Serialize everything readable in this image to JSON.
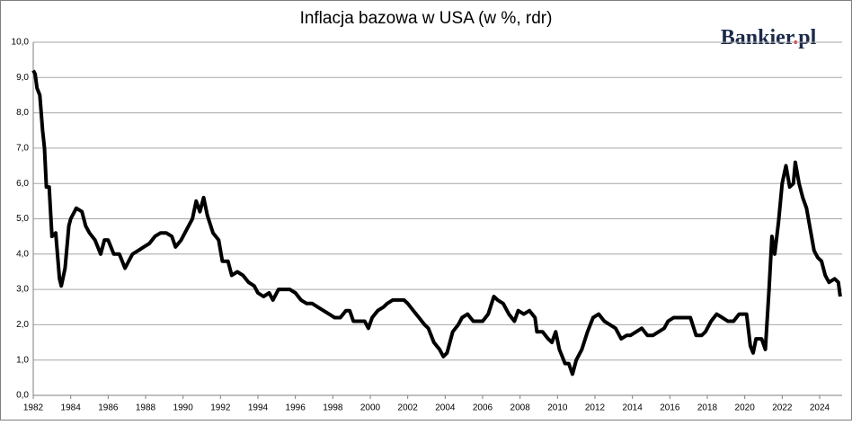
{
  "chart_data": {
    "type": "line",
    "title": "Inflacja bazowa w USA (w %, rdr)",
    "logo": [
      "Bankier",
      ".",
      "pl"
    ],
    "logo_colors": [
      "#1b2a4a",
      "#d9232e",
      "#1b2a4a"
    ],
    "xlim": [
      1982,
      2025.2
    ],
    "xticks": [
      1982,
      1984,
      1986,
      1988,
      1990,
      1992,
      1994,
      1996,
      1998,
      2000,
      2002,
      2004,
      2006,
      2008,
      2010,
      2012,
      2014,
      2016,
      2018,
      2020,
      2022,
      2024
    ],
    "ylim": [
      0,
      10
    ],
    "yticks": [
      {
        "value": 0,
        "label": "0,0"
      },
      {
        "value": 1,
        "label": "1,0"
      },
      {
        "value": 2,
        "label": "2,0"
      },
      {
        "value": 3,
        "label": "3,0"
      },
      {
        "value": 4,
        "label": "4,0"
      },
      {
        "value": 5,
        "label": "5,0"
      },
      {
        "value": 6,
        "label": "6,0"
      },
      {
        "value": 7,
        "label": "7,0"
      },
      {
        "value": 8,
        "label": "8,0"
      },
      {
        "value": 9,
        "label": "9,0"
      },
      {
        "value": 10,
        "label": "10,0"
      }
    ],
    "grid": true,
    "series": [
      {
        "name": "Inflacja bazowa",
        "color": "#000000",
        "x": [
          1982.0,
          1982.1,
          1982.2,
          1982.35,
          1982.5,
          1982.6,
          1982.7,
          1982.85,
          1983.0,
          1983.2,
          1983.4,
          1983.5,
          1983.7,
          1983.9,
          1984.0,
          1984.3,
          1984.6,
          1984.8,
          1985.0,
          1985.3,
          1985.6,
          1985.8,
          1986.0,
          1986.3,
          1986.6,
          1986.9,
          1987.1,
          1987.3,
          1987.6,
          1987.9,
          1988.2,
          1988.5,
          1988.8,
          1989.1,
          1989.4,
          1989.6,
          1989.9,
          1990.2,
          1990.5,
          1990.7,
          1990.9,
          1991.1,
          1991.3,
          1991.6,
          1991.9,
          1992.1,
          1992.4,
          1992.6,
          1992.9,
          1993.2,
          1993.5,
          1993.8,
          1994.0,
          1994.3,
          1994.6,
          1994.8,
          1995.1,
          1995.4,
          1995.7,
          1996.0,
          1996.3,
          1996.6,
          1996.9,
          1997.2,
          1997.5,
          1997.8,
          1998.1,
          1998.4,
          1998.7,
          1998.9,
          1999.1,
          1999.4,
          1999.7,
          1999.9,
          2000.1,
          2000.4,
          2000.7,
          2000.9,
          2001.2,
          2001.5,
          2001.8,
          2002.0,
          2002.3,
          2002.6,
          2002.9,
          2003.1,
          2003.4,
          2003.7,
          2003.9,
          2004.1,
          2004.4,
          2004.7,
          2004.9,
          2005.2,
          2005.5,
          2005.8,
          2006.0,
          2006.3,
          2006.6,
          2006.8,
          2007.1,
          2007.4,
          2007.7,
          2007.9,
          2008.2,
          2008.5,
          2008.8,
          2008.9,
          2009.2,
          2009.5,
          2009.7,
          2009.9,
          2010.1,
          2010.4,
          2010.6,
          2010.8,
          2011.0,
          2011.3,
          2011.6,
          2011.9,
          2012.2,
          2012.5,
          2012.8,
          2013.1,
          2013.4,
          2013.7,
          2013.9,
          2014.2,
          2014.5,
          2014.8,
          2015.1,
          2015.4,
          2015.7,
          2015.9,
          2016.2,
          2016.5,
          2016.8,
          2017.1,
          2017.4,
          2017.7,
          2017.9,
          2018.2,
          2018.5,
          2018.8,
          2019.1,
          2019.4,
          2019.7,
          2019.9,
          2020.1,
          2020.3,
          2020.45,
          2020.6,
          2020.9,
          2021.1,
          2021.3,
          2021.45,
          2021.6,
          2021.8,
          2022.0,
          2022.2,
          2022.4,
          2022.6,
          2022.7,
          2022.9,
          2023.1,
          2023.3,
          2023.5,
          2023.7,
          2023.9,
          2024.1,
          2024.3,
          2024.5,
          2024.8,
          2025.0,
          2025.1
        ],
        "values": [
          9.2,
          9.1,
          8.7,
          8.5,
          7.5,
          7.0,
          5.9,
          5.9,
          4.5,
          4.6,
          3.3,
          3.1,
          3.6,
          4.8,
          5.0,
          5.3,
          5.2,
          4.8,
          4.6,
          4.4,
          4.0,
          4.4,
          4.4,
          4.0,
          4.0,
          3.6,
          3.8,
          4.0,
          4.1,
          4.2,
          4.3,
          4.5,
          4.6,
          4.6,
          4.5,
          4.2,
          4.4,
          4.7,
          5.0,
          5.5,
          5.2,
          5.6,
          5.1,
          4.6,
          4.4,
          3.8,
          3.8,
          3.4,
          3.5,
          3.4,
          3.2,
          3.1,
          2.9,
          2.8,
          2.9,
          2.7,
          3.0,
          3.0,
          3.0,
          2.9,
          2.7,
          2.6,
          2.6,
          2.5,
          2.4,
          2.3,
          2.2,
          2.2,
          2.4,
          2.4,
          2.1,
          2.1,
          2.1,
          1.9,
          2.2,
          2.4,
          2.5,
          2.6,
          2.7,
          2.7,
          2.7,
          2.6,
          2.4,
          2.2,
          2.0,
          1.9,
          1.5,
          1.3,
          1.1,
          1.2,
          1.8,
          2.0,
          2.2,
          2.3,
          2.1,
          2.1,
          2.1,
          2.3,
          2.8,
          2.7,
          2.6,
          2.3,
          2.1,
          2.4,
          2.3,
          2.4,
          2.2,
          1.8,
          1.8,
          1.6,
          1.5,
          1.8,
          1.3,
          0.9,
          0.9,
          0.6,
          1.0,
          1.3,
          1.8,
          2.2,
          2.3,
          2.1,
          2.0,
          1.9,
          1.6,
          1.7,
          1.7,
          1.8,
          1.9,
          1.7,
          1.7,
          1.8,
          1.9,
          2.1,
          2.2,
          2.2,
          2.2,
          2.2,
          1.7,
          1.7,
          1.8,
          2.1,
          2.3,
          2.2,
          2.1,
          2.1,
          2.3,
          2.3,
          2.3,
          1.4,
          1.2,
          1.6,
          1.6,
          1.3,
          3.0,
          4.5,
          4.0,
          4.9,
          6.0,
          6.5,
          5.9,
          6.0,
          6.6,
          6.0,
          5.6,
          5.3,
          4.7,
          4.1,
          3.9,
          3.8,
          3.4,
          3.2,
          3.3,
          3.2,
          2.8
        ]
      }
    ]
  }
}
